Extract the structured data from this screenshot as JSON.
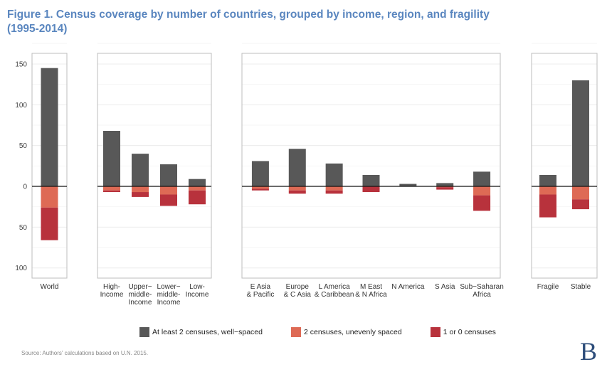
{
  "title_line1": "Figure 1. Census coverage by number of countries, grouped by income, region, and fragility",
  "title_line2": "(1995-2014)",
  "source": "Source:  Authors' calculations based on U.N. 2015.",
  "logo": "B",
  "colors": {
    "well_spaced": "#585858",
    "unevenly_spaced": "#de6a55",
    "one_or_zero": "#b8323c",
    "title": "#5a86bf"
  },
  "chart_data": {
    "type": "bar",
    "title": "Figure 1. Census coverage by number of countries, grouped by income, region, and fragility (1995-2014)",
    "xlabel": "",
    "ylabel": "",
    "ylim": [
      -110,
      155
    ],
    "yticks": [
      150,
      100,
      50,
      0,
      -50,
      -100
    ],
    "ytick_labels": [
      "150",
      "100",
      "50",
      "0",
      "50",
      "100"
    ],
    "grid": true,
    "legend_position": "bottom",
    "legend": [
      {
        "key": "well_spaced",
        "label": "At least 2 censuses, well−spaced"
      },
      {
        "key": "unevenly_spaced",
        "label": "2 censuses, unevenly spaced"
      },
      {
        "key": "one_or_zero",
        "label": "1 or 0 censuses"
      }
    ],
    "panels": [
      {
        "name": "world",
        "categories": [
          {
            "label": [
              "World"
            ],
            "well_spaced": 145,
            "unevenly_spaced": 26,
            "one_or_zero": 40
          }
        ]
      },
      {
        "name": "income",
        "categories": [
          {
            "label": [
              "High-",
              "Income"
            ],
            "well_spaced": 68,
            "unevenly_spaced": 5,
            "one_or_zero": 2
          },
          {
            "label": [
              "Upper−",
              "middle-",
              "Income"
            ],
            "well_spaced": 40,
            "unevenly_spaced": 7,
            "one_or_zero": 6
          },
          {
            "label": [
              "Lower−",
              "middle-",
              "Income"
            ],
            "well_spaced": 27,
            "unevenly_spaced": 10,
            "one_or_zero": 14
          },
          {
            "label": [
              "Low-",
              "Income"
            ],
            "well_spaced": 9,
            "unevenly_spaced": 5,
            "one_or_zero": 17
          }
        ]
      },
      {
        "name": "region",
        "categories": [
          {
            "label": [
              "E Asia",
              "& Pacific"
            ],
            "well_spaced": 31,
            "unevenly_spaced": 3,
            "one_or_zero": 2
          },
          {
            "label": [
              "Europe",
              "& C Asia"
            ],
            "well_spaced": 46,
            "unevenly_spaced": 5,
            "one_or_zero": 4
          },
          {
            "label": [
              "L America",
              "& Caribbean"
            ],
            "well_spaced": 28,
            "unevenly_spaced": 5,
            "one_or_zero": 4
          },
          {
            "label": [
              "M East",
              "& N Africa"
            ],
            "well_spaced": 14,
            "unevenly_spaced": 0,
            "one_or_zero": 7
          },
          {
            "label": [
              "N America"
            ],
            "well_spaced": 3,
            "unevenly_spaced": 0,
            "one_or_zero": 0
          },
          {
            "label": [
              "S Asia"
            ],
            "well_spaced": 4,
            "unevenly_spaced": 1,
            "one_or_zero": 3
          },
          {
            "label": [
              "Sub−Saharan",
              "Africa"
            ],
            "well_spaced": 18,
            "unevenly_spaced": 11,
            "one_or_zero": 19
          }
        ]
      },
      {
        "name": "fragility",
        "categories": [
          {
            "label": [
              "Fragile"
            ],
            "well_spaced": 14,
            "unevenly_spaced": 10,
            "one_or_zero": 28
          },
          {
            "label": [
              "Stable"
            ],
            "well_spaced": 130,
            "unevenly_spaced": 16,
            "one_or_zero": 12
          }
        ]
      }
    ]
  }
}
